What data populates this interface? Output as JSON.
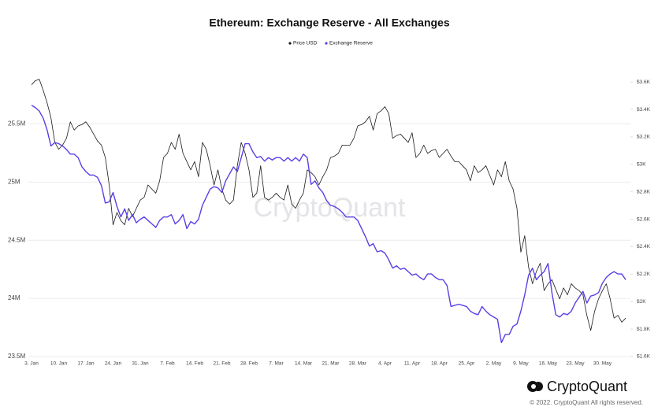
{
  "chart_data": {
    "type": "line",
    "title": "Ethereum: Exchange Reserve - All Exchanges",
    "watermark": "CryptoQuant",
    "footer": {
      "brand": "CryptoQuant",
      "copyright": "© 2022. CryptoQuant All rights reserved."
    },
    "categories": [
      "3. Jan",
      null,
      null,
      null,
      null,
      null,
      null,
      "10. Jan",
      null,
      null,
      null,
      null,
      null,
      null,
      "17. Jan",
      null,
      null,
      null,
      null,
      null,
      null,
      "24. Jan",
      null,
      null,
      null,
      null,
      null,
      null,
      "31. Jan",
      null,
      null,
      null,
      null,
      null,
      null,
      "7. Feb",
      null,
      null,
      null,
      null,
      null,
      null,
      "14. Feb",
      null,
      null,
      null,
      null,
      null,
      null,
      "21. Feb",
      null,
      null,
      null,
      null,
      null,
      null,
      "28. Feb",
      null,
      null,
      null,
      null,
      null,
      null,
      "7. Mar",
      null,
      null,
      null,
      null,
      null,
      null,
      "14. Mar",
      null,
      null,
      null,
      null,
      null,
      null,
      "21. Mar",
      null,
      null,
      null,
      null,
      null,
      null,
      "28. Mar",
      null,
      null,
      null,
      null,
      null,
      null,
      "4. Apr",
      null,
      null,
      null,
      null,
      null,
      null,
      "11. Apr",
      null,
      null,
      null,
      null,
      null,
      null,
      "18. Apr",
      null,
      null,
      null,
      null,
      null,
      null,
      "25. Apr",
      null,
      null,
      null,
      null,
      null,
      null,
      "2. May",
      null,
      null,
      null,
      null,
      null,
      null,
      "9. May",
      null,
      null,
      null,
      null,
      null,
      null,
      "16. May",
      null,
      null,
      null,
      null,
      null,
      null,
      "23. May",
      null,
      null,
      null,
      null,
      null,
      null,
      "30. May",
      null,
      null,
      null,
      null,
      null,
      null
    ],
    "series": [
      {
        "name": "Price USD",
        "color": "#1a1a1a",
        "axis": "y2",
        "values": [
          3580,
          3610,
          3620,
          3540,
          3450,
          3340,
          3160,
          3110,
          3140,
          3190,
          3310,
          3250,
          3280,
          3290,
          3310,
          3270,
          3220,
          3170,
          3140,
          3050,
          2850,
          2560,
          2650,
          2590,
          2560,
          2680,
          2620,
          2680,
          2740,
          2760,
          2850,
          2820,
          2790,
          2880,
          3050,
          3080,
          3160,
          3110,
          3220,
          3080,
          3020,
          2960,
          3020,
          2910,
          3160,
          3110,
          2990,
          2850,
          2960,
          2820,
          2740,
          2710,
          2740,
          2990,
          3160,
          3080,
          2960,
          2760,
          2790,
          2990,
          2760,
          2740,
          2760,
          2790,
          2760,
          2740,
          2850,
          2710,
          2680,
          2740,
          2790,
          2960,
          2940,
          2910,
          2850,
          2910,
          2960,
          3050,
          3060,
          3080,
          3140,
          3140,
          3140,
          3190,
          3280,
          3290,
          3310,
          3350,
          3250,
          3370,
          3390,
          3420,
          3370,
          3190,
          3210,
          3220,
          3190,
          3160,
          3230,
          3050,
          3080,
          3140,
          3080,
          3100,
          3110,
          3050,
          3080,
          3110,
          3060,
          3020,
          3020,
          2990,
          2960,
          2880,
          2990,
          2940,
          2960,
          2990,
          2920,
          2850,
          2960,
          2910,
          3020,
          2880,
          2820,
          2680,
          2360,
          2480,
          2250,
          2130,
          2220,
          2280,
          2080,
          2130,
          2160,
          2090,
          2020,
          2100,
          2050,
          2130,
          2100,
          2080,
          2050,
          1900,
          1790,
          1930,
          2020,
          2080,
          2130,
          2020,
          1880,
          1900,
          1850,
          1880
        ]
      },
      {
        "name": "Exchange Reserve",
        "color": "#5a3fe6",
        "values": [
          25660000,
          25640000,
          25610000,
          25550000,
          25450000,
          25310000,
          25340000,
          25330000,
          25310000,
          25280000,
          25240000,
          25240000,
          25210000,
          25130000,
          25090000,
          25060000,
          25060000,
          25040000,
          24970000,
          24820000,
          24830000,
          24910000,
          24790000,
          24700000,
          24770000,
          24670000,
          24720000,
          24650000,
          24680000,
          24700000,
          24670000,
          24640000,
          24610000,
          24670000,
          24700000,
          24700000,
          24720000,
          24640000,
          24670000,
          24720000,
          24600000,
          24660000,
          24640000,
          24680000,
          24800000,
          24870000,
          24940000,
          24960000,
          24950000,
          24910000,
          25010000,
          25070000,
          25130000,
          25090000,
          25210000,
          25330000,
          25330000,
          25260000,
          25210000,
          25220000,
          25180000,
          25210000,
          25190000,
          25210000,
          25210000,
          25180000,
          25210000,
          25180000,
          25210000,
          25180000,
          25240000,
          25210000,
          24980000,
          25010000,
          24950000,
          24910000,
          24840000,
          24800000,
          24790000,
          24770000,
          24740000,
          24700000,
          24700000,
          24700000,
          24670000,
          24600000,
          24530000,
          24450000,
          24470000,
          24400000,
          24410000,
          24390000,
          24330000,
          24260000,
          24280000,
          24250000,
          24260000,
          24230000,
          24200000,
          24210000,
          24180000,
          24160000,
          24210000,
          24210000,
          24180000,
          24160000,
          24160000,
          24110000,
          23930000,
          23940000,
          23950000,
          23940000,
          23930000,
          23890000,
          23870000,
          23860000,
          23930000,
          23890000,
          23860000,
          23840000,
          23820000,
          23620000,
          23690000,
          23690000,
          23760000,
          23780000,
          23890000,
          24030000,
          24200000,
          24260000,
          24160000,
          24200000,
          24230000,
          24300000,
          24050000,
          23860000,
          23840000,
          23870000,
          23860000,
          23890000,
          23960000,
          24010000,
          24060000,
          23960000,
          24020000,
          24030000,
          24050000,
          24130000,
          24180000,
          24210000,
          24230000,
          24210000,
          24210000,
          24160000
        ]
      }
    ],
    "ylim": [
      23500000,
      25990000
    ],
    "yticks": [
      {
        "value": 23500000,
        "label": "23.5M"
      },
      {
        "value": 24000000,
        "label": "24M"
      },
      {
        "value": 24500000,
        "label": "24.5M"
      },
      {
        "value": 25000000,
        "label": "25M"
      },
      {
        "value": 25500000,
        "label": "25.5M"
      }
    ],
    "y2lim": [
      1600,
      3710
    ],
    "y2ticks": [
      {
        "value": 1600,
        "label": "$1.6K"
      },
      {
        "value": 1800,
        "label": "$1.8K"
      },
      {
        "value": 2000,
        "label": "$2K"
      },
      {
        "value": 2200,
        "label": "$2.2K"
      },
      {
        "value": 2400,
        "label": "$2.4K"
      },
      {
        "value": 2600,
        "label": "$2.6K"
      },
      {
        "value": 2800,
        "label": "$2.8K"
      },
      {
        "value": 3000,
        "label": "$3K"
      },
      {
        "value": 3200,
        "label": "$3.2K"
      },
      {
        "value": 3400,
        "label": "$3.4K"
      },
      {
        "value": 3600,
        "label": "$3.6K"
      }
    ],
    "grid": true
  }
}
